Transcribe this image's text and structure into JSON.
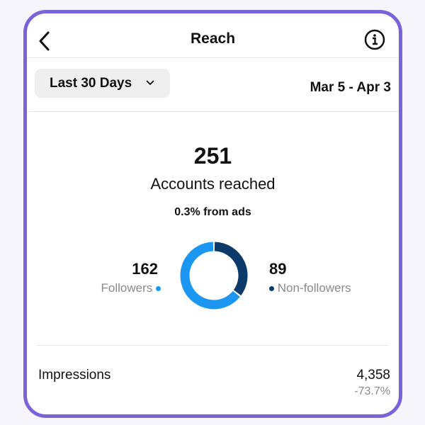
{
  "header": {
    "title": "Reach"
  },
  "filter": {
    "label": "Last 30 Days",
    "date_range": "Mar 5 - Apr 3"
  },
  "summary": {
    "total": 251,
    "label": "Accounts reached",
    "ads_note": "0.3% from ads"
  },
  "breakdown": {
    "type": "donut",
    "series": [
      {
        "name": "Followers",
        "value": 162,
        "color": "#1b97f1"
      },
      {
        "name": "Non-followers",
        "value": 89,
        "color": "#0b3a6b"
      }
    ]
  },
  "metrics": [
    {
      "label": "Impressions",
      "value": "4,358",
      "change": "-73.7%"
    }
  ]
}
